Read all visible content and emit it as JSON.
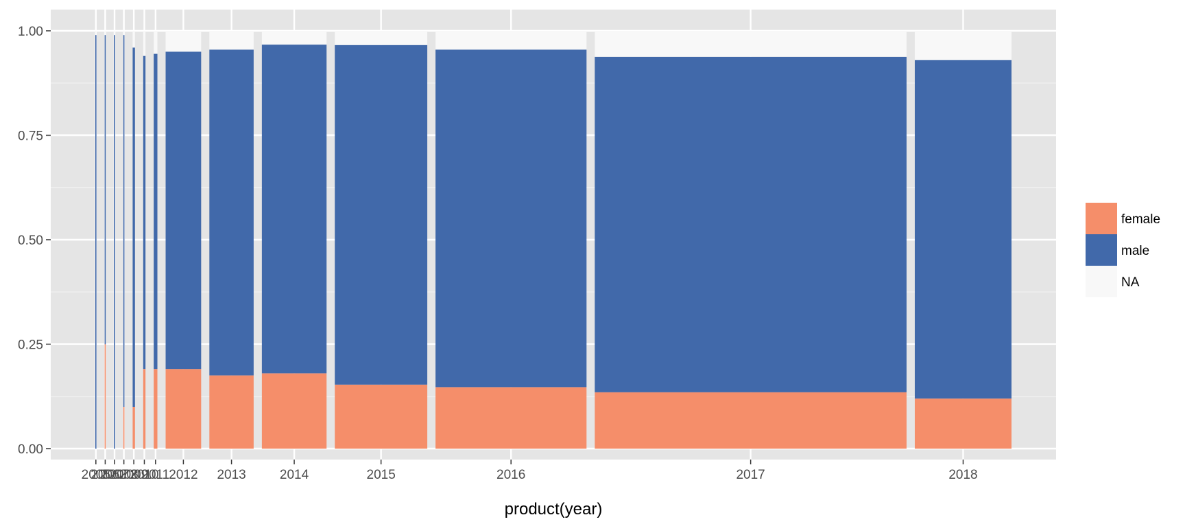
{
  "chart_data": {
    "type": "bar",
    "subtype": "mosaic",
    "xlabel": "product(year)",
    "ylabel": "",
    "ylim": [
      0,
      1
    ],
    "y_ticks": [
      0,
      0.25,
      0.5,
      0.75,
      1
    ],
    "y_tick_labels": [
      "0.00",
      "0.25",
      "0.50",
      "0.75",
      "1.00"
    ],
    "grid": true,
    "legend_position": "right",
    "categories": [
      "2005",
      "2006",
      "2007",
      "2008",
      "2009",
      "2010",
      "2011",
      "2012",
      "2013",
      "2014",
      "2015",
      "2016",
      "2017",
      "2018"
    ],
    "category_share": [
      0.0012,
      0.0012,
      0.0012,
      0.0012,
      0.0025,
      0.0025,
      0.004,
      0.0386,
      0.0481,
      0.0703,
      0.1005,
      0.1641,
      0.3388,
      0.1051
    ],
    "series": [
      {
        "name": "female",
        "color": "#F58E6A",
        "values": [
          0.0,
          0.25,
          0.0,
          0.1,
          0.1,
          0.19,
          0.19,
          0.19,
          0.175,
          0.18,
          0.153,
          0.147,
          0.135,
          0.12
        ]
      },
      {
        "name": "male",
        "color": "#4169AA",
        "values": [
          0.99,
          0.74,
          0.99,
          0.89,
          0.86,
          0.75,
          0.755,
          0.76,
          0.78,
          0.787,
          0.813,
          0.808,
          0.803,
          0.81
        ]
      },
      {
        "name": "NA",
        "color": "#F8F8F8",
        "values": [
          0.01,
          0.01,
          0.01,
          0.01,
          0.04,
          0.06,
          0.055,
          0.05,
          0.045,
          0.033,
          0.034,
          0.045,
          0.062,
          0.07
        ]
      }
    ]
  }
}
